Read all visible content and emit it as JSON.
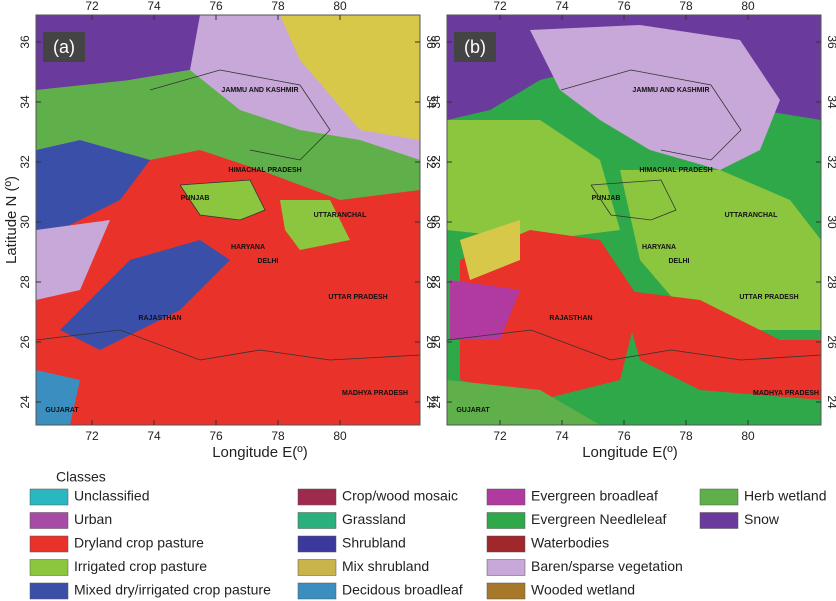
{
  "axis_labels": {
    "y": "Latitude N (º)",
    "x": "Longitude E(º)"
  },
  "lon_ticks": [
    72,
    74,
    76,
    78,
    80
  ],
  "lat_ticks": [
    24,
    26,
    28,
    30,
    32,
    34,
    36
  ],
  "panels": [
    {
      "label": "(a)"
    },
    {
      "label": "(b)"
    }
  ],
  "regions": [
    "JAMMU AND KASHMIR",
    "HIMACHAL PRADESH",
    "PUNJAB",
    "UTTARANCHAL",
    "HARYANA",
    "DELHI",
    "UTTAR PRADESH",
    "RAJASTHAN",
    "MADHYA PRADESH",
    "GUJARAT"
  ],
  "legend": {
    "title": "Classes",
    "items": [
      {
        "name": "Unclassified",
        "color": "#2ab7c0"
      },
      {
        "name": "Urban",
        "color": "#a64ca6"
      },
      {
        "name": "Dryland crop pasture",
        "color": "#e8322a"
      },
      {
        "name": "Irrigated crop pasture",
        "color": "#8cc63f"
      },
      {
        "name": "Mixed dry/irrigated crop pasture",
        "color": "#3a4fa8"
      },
      {
        "name": "Crop/wood mosaic",
        "color": "#9e2a4e"
      },
      {
        "name": "Grassland",
        "color": "#2ab07a"
      },
      {
        "name": "Shrubland",
        "color": "#3b3a9c"
      },
      {
        "name": "Mix shrubland",
        "color": "#c8b44a"
      },
      {
        "name": "Decidous broadleaf",
        "color": "#3a8fc0"
      },
      {
        "name": "Evergreen broadleaf",
        "color": "#b03aa0"
      },
      {
        "name": "Evergreen Needleleaf",
        "color": "#2fa84a"
      },
      {
        "name": "Waterbodies",
        "color": "#a0282a"
      },
      {
        "name": "Baren/sparse vegetation",
        "color": "#c8a8d8"
      },
      {
        "name": "Wooded wetland",
        "color": "#a8782a"
      },
      {
        "name": "Herb wetland",
        "color": "#5fb04a"
      },
      {
        "name": "Snow",
        "color": "#6a3a9c"
      }
    ]
  }
}
